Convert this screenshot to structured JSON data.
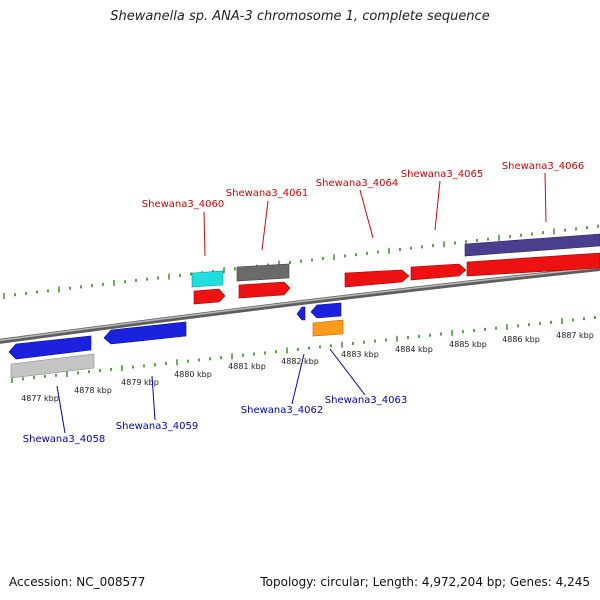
{
  "title": "Shewanella sp. ANA-3 chromosome 1, complete sequence",
  "footer": {
    "accession": "Accession: NC_008577",
    "summary": "Topology: circular; Length: 4,972,204 bp; Genes: 4,245"
  },
  "colors": {
    "backbone": "#8a8a8a",
    "tick": "#2e8b1e",
    "forward_label": "#dd0000",
    "reverse_label": "#0000cc",
    "red_cds": "#ee1111",
    "blue_cds": "#1a22dd",
    "gray_feature": "#bdbdbd",
    "dark_gray_feature": "#6a6a6a",
    "cyan_feature": "#22dddd",
    "orange_feature": "#ff9a1a",
    "purple_feature": "#4a3f8f"
  },
  "kbp_labels": [
    "4877 kbp",
    "4878 kbp",
    "4879 kbp",
    "4880 kbp",
    "4881 kbp",
    "4882 kbp",
    "4883 kbp",
    "4884 kbp",
    "4885 kbp",
    "4886 kbp",
    "4887 kbp"
  ],
  "forward_genes": [
    {
      "label": "Shewana3_4060"
    },
    {
      "label": "Shewana3_4061"
    },
    {
      "label": "Shewana3_4064"
    },
    {
      "label": "Shewana3_4065"
    },
    {
      "label": "Shewana3_4066"
    }
  ],
  "reverse_genes": [
    {
      "label": "Shewana3_4058"
    },
    {
      "label": "Shewana3_4059"
    },
    {
      "label": "Shewana3_4062"
    },
    {
      "label": "Shewana3_4063"
    }
  ]
}
